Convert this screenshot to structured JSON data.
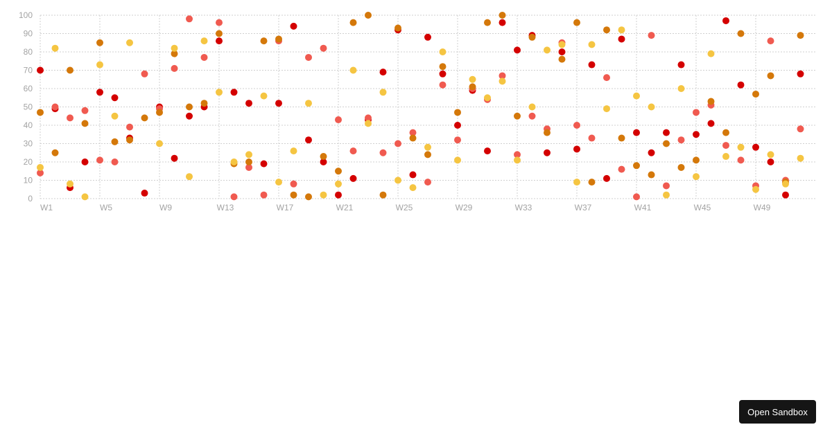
{
  "chart_data": {
    "type": "scatter",
    "title": "",
    "xlabel": "",
    "ylabel": "",
    "ylim": [
      0,
      100
    ],
    "yticks": [
      0,
      10,
      20,
      30,
      40,
      50,
      60,
      70,
      80,
      90,
      100
    ],
    "grid": true,
    "legend": null,
    "categories": [
      "W1",
      "W2",
      "W3",
      "W4",
      "W5",
      "W6",
      "W7",
      "W8",
      "W9",
      "W10",
      "W11",
      "W12",
      "W13",
      "W14",
      "W15",
      "W16",
      "W17",
      "W18",
      "W19",
      "W20",
      "W21",
      "W22",
      "W23",
      "W24",
      "W25",
      "W26",
      "W27",
      "W28",
      "W29",
      "W30",
      "W31",
      "W32",
      "W33",
      "W34",
      "W35",
      "W36",
      "W37",
      "W38",
      "W39",
      "W40",
      "W41",
      "W42",
      "W43",
      "W44",
      "W45",
      "W46",
      "W47",
      "W48",
      "W49",
      "W50",
      "W51",
      "W52"
    ],
    "visible_x_labels": [
      "W1",
      "W5",
      "W9",
      "W13",
      "W17",
      "W21",
      "W25",
      "W29",
      "W33",
      "W37",
      "W41",
      "W45",
      "W49"
    ],
    "series": [
      {
        "name": "Series 1",
        "color": "#d40000",
        "values": [
          70,
          49,
          6,
          20,
          58,
          55,
          33,
          3,
          50,
          22,
          45,
          50,
          86,
          58,
          52,
          19,
          52,
          94,
          32,
          20,
          2,
          11,
          43,
          69,
          92,
          13,
          88,
          68,
          40,
          59,
          26,
          96,
          81,
          89,
          25,
          80,
          27,
          73,
          11,
          87,
          36,
          25,
          36,
          73,
          35,
          41,
          97,
          62,
          28,
          20,
          2,
          68
        ]
      },
      {
        "name": "Series 2",
        "color": "#f05a50",
        "values": [
          14,
          50,
          44,
          48,
          21,
          20,
          39,
          68,
          49,
          71,
          98,
          77,
          96,
          1,
          17,
          2,
          86,
          8,
          77,
          82,
          43,
          26,
          44,
          25,
          30,
          36,
          9,
          62,
          32,
          60,
          54,
          67,
          24,
          45,
          38,
          85,
          40,
          33,
          66,
          16,
          1,
          89,
          7,
          32,
          47,
          51,
          29,
          21,
          7,
          86,
          10,
          38
        ]
      },
      {
        "name": "Series 3",
        "color": "#d4780a",
        "values": [
          47,
          25,
          70,
          41,
          85,
          31,
          32,
          44,
          47,
          79,
          50,
          52,
          90,
          19,
          20,
          86,
          87,
          2,
          1,
          23,
          15,
          96,
          100,
          2,
          93,
          33,
          24,
          72,
          47,
          61,
          96,
          100,
          45,
          88,
          36,
          76,
          96,
          9,
          92,
          33,
          18,
          13,
          30,
          17,
          21,
          53,
          36,
          90,
          57,
          67,
          9,
          89
        ]
      },
      {
        "name": "Series 4",
        "color": "#f5c542",
        "values": [
          17,
          82,
          8,
          1,
          73,
          45,
          85,
          null,
          30,
          82,
          12,
          86,
          58,
          20,
          24,
          56,
          9,
          26,
          52,
          2,
          8,
          70,
          41,
          58,
          10,
          6,
          28,
          80,
          21,
          65,
          55,
          64,
          21,
          50,
          81,
          84,
          9,
          84,
          49,
          92,
          56,
          50,
          2,
          60,
          12,
          79,
          23,
          28,
          5,
          24,
          8,
          22
        ]
      }
    ]
  },
  "ui": {
    "open_sandbox_label": "Open Sandbox"
  }
}
